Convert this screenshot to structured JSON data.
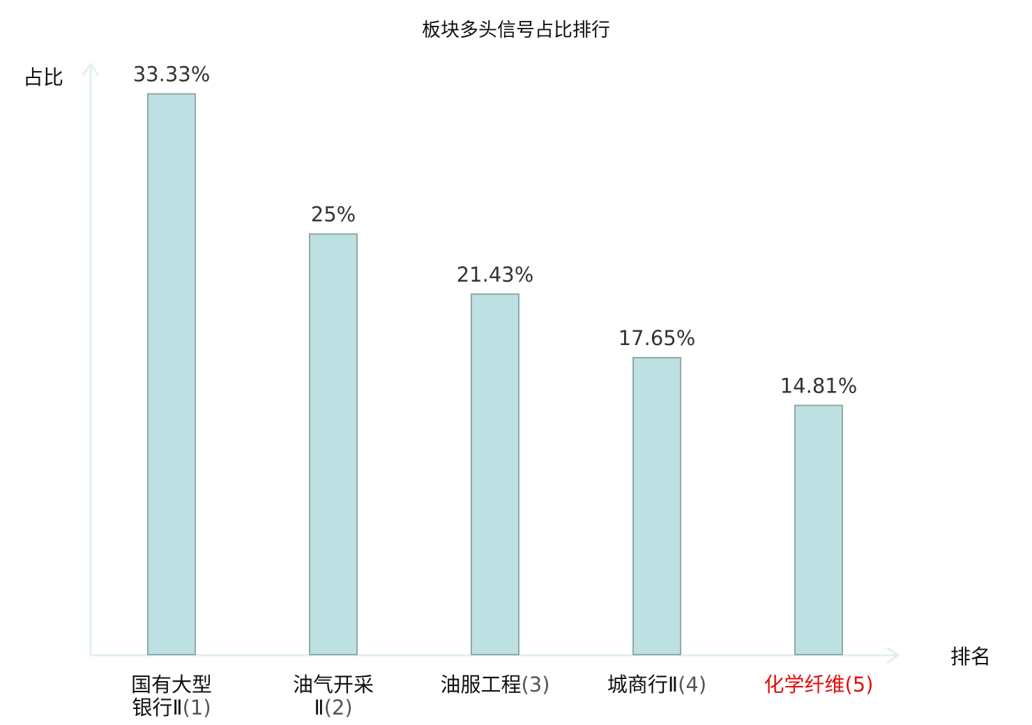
{
  "chart_data": {
    "type": "bar",
    "title": "板块多头信号占比排行",
    "ylabel": "占比",
    "xlabel": "排名",
    "ylim": [
      0,
      34.6
    ],
    "categories": [
      {
        "name": "国有大型银行Ⅱ",
        "rank": "(1)",
        "highlight": false,
        "lines": [
          [
            "国有大型",
            ""
          ],
          [
            "银行Ⅱ",
            "(1)"
          ]
        ]
      },
      {
        "name": "油气开采Ⅱ",
        "rank": "(2)",
        "highlight": false,
        "lines": [
          [
            "油气开采",
            ""
          ],
          [
            "Ⅱ",
            "(2)"
          ]
        ]
      },
      {
        "name": "油服工程",
        "rank": "(3)",
        "highlight": false,
        "lines": [
          [
            "油服工程",
            "(3)"
          ]
        ]
      },
      {
        "name": "城商行Ⅱ",
        "rank": "(4)",
        "highlight": false,
        "lines": [
          [
            "城商行Ⅱ",
            "(4)"
          ]
        ]
      },
      {
        "name": "化学纤维",
        "rank": "(5)",
        "highlight": true,
        "lines": [
          [
            "化学纤维",
            "(5)"
          ]
        ]
      }
    ],
    "values": [
      33.33,
      25,
      21.43,
      17.65,
      14.81
    ],
    "value_labels": [
      "33.33%",
      "25%",
      "21.43%",
      "17.65%",
      "14.81%"
    ],
    "grid": false,
    "legend": "none"
  },
  "colors": {
    "bar_fill": "#bde0e2",
    "bar_stroke": "#8fa8a8",
    "axis": "#dff1ee",
    "highlight": "#e01010",
    "text": "#111111",
    "value_text": "#333333",
    "rank_text": "#555555"
  }
}
